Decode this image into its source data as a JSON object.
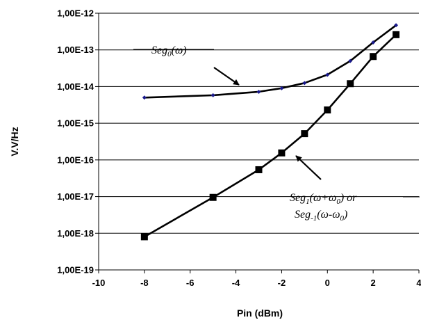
{
  "chart_data": {
    "type": "line",
    "xlabel": "Pin (dBm)",
    "ylabel": "V.V/Hz",
    "xlim": [
      -10,
      4
    ],
    "x_ticks": [
      -10,
      -8,
      -6,
      -4,
      -2,
      0,
      2,
      4
    ],
    "x_tick_labels": [
      "-10",
      "-8",
      "-6",
      "-4",
      "-2",
      "0",
      "2",
      "4"
    ],
    "y_scale": "log",
    "ylim": [
      1e-19,
      1e-12
    ],
    "y_ticks": [
      1e-19,
      1e-18,
      1e-17,
      1e-16,
      1e-15,
      1e-14,
      1e-13,
      1e-12
    ],
    "y_tick_labels": [
      "1,00E-19",
      "1,00E-18",
      "1,00E-17",
      "1,00E-16",
      "1,00E-15",
      "1,00E-14",
      "1,00E-13",
      "1,00E-12"
    ],
    "grid": "horizontal",
    "series": [
      {
        "marker": "small-diamond",
        "color": "#000000",
        "marker_color": "#1a1a8c",
        "x": [
          -8,
          -5,
          -3,
          -2,
          -1,
          0,
          1,
          2,
          3
        ],
        "y": [
          5e-15,
          5.8e-15,
          7.2e-15,
          9e-15,
          1.25e-14,
          2.1e-14,
          5e-14,
          1.6e-13,
          4.7e-13
        ]
      },
      {
        "marker": "square",
        "color": "#000000",
        "marker_color": "#000000",
        "x": [
          -8,
          -5,
          -3,
          -2,
          -1,
          0,
          1,
          2,
          3
        ],
        "y": [
          8e-19,
          9.5e-18,
          5.4e-17,
          1.55e-16,
          5.2e-16,
          2.3e-15,
          1.2e-14,
          6.6e-14,
          2.6e-13
        ]
      }
    ],
    "annotations": [
      {
        "id": "seg0",
        "text": "Seg₀(ω)"
      },
      {
        "id": "seg1",
        "line1": "Seg₁(ω+ω₀) or",
        "line2": "Seg₋₁(ω-ω₀)"
      }
    ]
  }
}
